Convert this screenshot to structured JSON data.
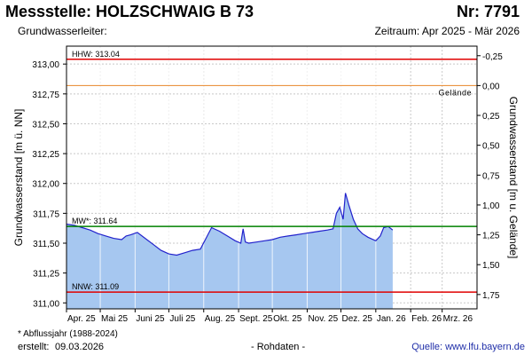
{
  "header": {
    "title": "Messstelle: HOLZSCHWAIG B 73",
    "nr": "Nr: 7791",
    "subtitle": "Grundwasserleiter:",
    "range": "Zeitraum: Apr 2025 - Mär 2026"
  },
  "footer": {
    "note": "* Abflussjahr (1988-2024)",
    "created_label": "erstellt:",
    "created_date": "09.03.2026",
    "status": "- Rohdaten -",
    "source": "Quelle: www.lfu.bayern.de"
  },
  "chart_data": {
    "type": "area",
    "ylabel": "Grundwasserstand [m ü. NN]",
    "ylabel_right": "Grundwasserstand [m u. Gelände]",
    "ylim": [
      310.95,
      313.15
    ],
    "yticks": [
      311.0,
      311.25,
      311.5,
      311.75,
      312.0,
      312.25,
      312.5,
      312.75,
      313.0
    ],
    "ytick_labels": [
      "311,00",
      "311,25",
      "311,50",
      "311,75",
      "312,00",
      "312,25",
      "312,50",
      "312,75",
      "313,00"
    ],
    "right_ticks": [
      -0.25,
      0.0,
      0.25,
      0.5,
      0.75,
      1.0,
      1.25,
      1.5,
      1.75
    ],
    "right_tick_labels": [
      "-0,25",
      "0,00",
      "0,25",
      "0,50",
      "0,75",
      "1,00",
      "1,25",
      "1,50",
      "1,75"
    ],
    "ground_level": 312.82,
    "xlim": [
      "2025-04-01",
      "2026-04-01"
    ],
    "x_ticks": [
      "2025-04-01",
      "2025-05-01",
      "2025-06-01",
      "2025-07-01",
      "2025-08-01",
      "2025-09-01",
      "2025-10-01",
      "2025-11-01",
      "2025-12-01",
      "2026-01-01",
      "2026-02-01",
      "2026-03-01"
    ],
    "x_tick_labels": [
      "Apr. 25",
      "Mai 25",
      "Juni 25",
      "Juli 25",
      "Aug. 25",
      "Sept. 25",
      "Okt. 25",
      "Nov. 25",
      "Dez. 25",
      "Jan. 26",
      "Feb. 26",
      "Mrz. 26"
    ],
    "grid": true,
    "reference_lines": [
      {
        "label": "HHW: 313.04",
        "value": 313.04,
        "color": "#e00000"
      },
      {
        "label": "Gelände",
        "value": 312.82,
        "color": "#e8862a"
      },
      {
        "label": "MW*: 311.64",
        "value": 311.64,
        "color": "#008000"
      },
      {
        "label": "NNW: 311.09",
        "value": 311.09,
        "color": "#e00000"
      }
    ],
    "series": [
      {
        "color": "#2222cc",
        "fill": "#a6c7f0",
        "x": [
          "2025-04-01",
          "2025-04-08",
          "2025-04-15",
          "2025-04-22",
          "2025-04-29",
          "2025-05-06",
          "2025-05-13",
          "2025-05-20",
          "2025-05-24",
          "2025-05-28",
          "2025-06-03",
          "2025-06-10",
          "2025-06-17",
          "2025-06-24",
          "2025-07-01",
          "2025-07-08",
          "2025-07-15",
          "2025-07-22",
          "2025-07-29",
          "2025-08-03",
          "2025-08-08",
          "2025-08-15",
          "2025-08-22",
          "2025-08-29",
          "2025-09-03",
          "2025-09-05",
          "2025-09-07",
          "2025-09-10",
          "2025-09-17",
          "2025-09-24",
          "2025-10-01",
          "2025-10-08",
          "2025-10-15",
          "2025-10-22",
          "2025-10-29",
          "2025-11-05",
          "2025-11-12",
          "2025-11-19",
          "2025-11-24",
          "2025-11-27",
          "2025-11-30",
          "2025-12-03",
          "2025-12-05",
          "2025-12-08",
          "2025-12-12",
          "2025-12-16",
          "2025-12-20",
          "2025-12-25",
          "2026-01-01",
          "2026-01-05",
          "2026-01-08",
          "2026-01-12",
          "2026-01-16"
        ],
        "y": [
          311.66,
          311.65,
          311.63,
          311.61,
          311.58,
          311.56,
          311.54,
          311.53,
          311.56,
          311.57,
          311.59,
          311.54,
          311.49,
          311.44,
          311.41,
          311.4,
          311.42,
          311.44,
          311.45,
          311.54,
          311.63,
          311.6,
          311.56,
          311.52,
          311.5,
          311.62,
          311.51,
          311.5,
          311.51,
          311.52,
          311.53,
          311.55,
          311.56,
          311.57,
          311.58,
          311.59,
          311.6,
          311.61,
          311.62,
          311.75,
          311.8,
          311.7,
          311.92,
          311.82,
          311.7,
          311.62,
          311.58,
          311.55,
          311.52,
          311.56,
          311.63,
          311.64,
          311.61
        ]
      }
    ]
  }
}
